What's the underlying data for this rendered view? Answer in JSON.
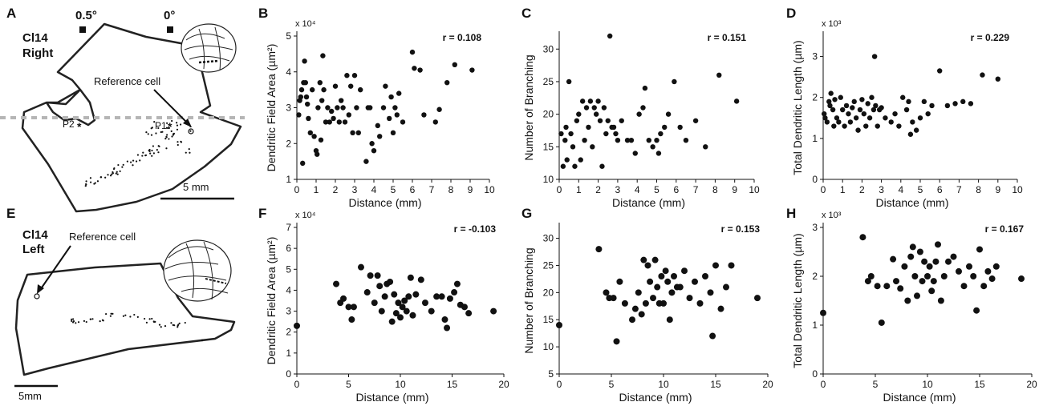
{
  "chart_data": [
    {
      "id": "B",
      "type": "scatter",
      "panel_label": "B",
      "ylabel": "Dendritic Field Area (µm²)",
      "xlabel": "Distance (mm)",
      "multiplier": "x 10⁴",
      "r_label": "r = 0.108",
      "xlim": [
        0,
        10
      ],
      "ylim": [
        1,
        5
      ],
      "xticks": [
        0,
        1,
        2,
        3,
        4,
        5,
        6,
        7,
        8,
        9,
        10
      ],
      "yticks": [
        1,
        2,
        3,
        4,
        5
      ],
      "x": [
        0.1,
        0.15,
        0.2,
        0.25,
        0.3,
        0.35,
        0.4,
        0.45,
        0.5,
        0.55,
        0.6,
        0.7,
        0.8,
        0.9,
        1.0,
        1.05,
        1.1,
        1.2,
        1.25,
        1.3,
        1.35,
        1.4,
        1.5,
        1.6,
        1.7,
        1.8,
        1.9,
        2.0,
        2.1,
        2.2,
        2.3,
        2.4,
        2.5,
        2.6,
        2.7,
        2.8,
        2.9,
        3.0,
        3.1,
        3.2,
        3.3,
        3.6,
        3.7,
        3.8,
        3.9,
        4.0,
        4.2,
        4.3,
        4.5,
        4.6,
        4.8,
        4.9,
        5.0,
        5.1,
        5.2,
        5.3,
        5.5,
        6.0,
        6.1,
        6.4,
        6.6,
        7.2,
        7.4,
        7.8,
        8.2,
        9.1
      ],
      "y": [
        2.8,
        3.2,
        3.3,
        3.5,
        1.45,
        3.7,
        4.3,
        3.7,
        3.3,
        3.1,
        2.7,
        2.3,
        3.5,
        2.2,
        1.8,
        1.7,
        3.0,
        3.7,
        2.1,
        3.2,
        4.45,
        3.5,
        2.6,
        3.0,
        2.6,
        2.9,
        2.7,
        3.6,
        3.0,
        2.6,
        3.2,
        3.0,
        2.6,
        3.9,
        2.8,
        3.6,
        2.3,
        3.9,
        3.0,
        2.3,
        3.5,
        1.5,
        3.0,
        3.0,
        2.0,
        1.8,
        2.5,
        2.2,
        3.0,
        3.6,
        2.7,
        3.3,
        2.3,
        3.0,
        2.8,
        3.4,
        2.6,
        4.55,
        4.1,
        4.05,
        2.8,
        2.6,
        2.95,
        3.7,
        4.2,
        4.05
      ]
    },
    {
      "id": "C",
      "type": "scatter",
      "panel_label": "C",
      "ylabel": "Number of Branching",
      "xlabel": "Distance (mm)",
      "multiplier": "",
      "r_label": "r = 0.151",
      "xlim": [
        0,
        10
      ],
      "ylim": [
        10,
        32
      ],
      "xticks": [
        0,
        1,
        2,
        3,
        4,
        5,
        6,
        7,
        8,
        9,
        10
      ],
      "yticks": [
        10,
        15,
        20,
        25,
        30
      ],
      "x": [
        0.1,
        0.2,
        0.3,
        0.35,
        0.4,
        0.5,
        0.6,
        0.7,
        0.8,
        0.9,
        1.0,
        1.1,
        1.2,
        1.3,
        1.4,
        1.5,
        1.6,
        1.7,
        1.8,
        1.9,
        2.0,
        2.1,
        2.2,
        2.3,
        2.4,
        2.5,
        2.6,
        2.7,
        2.8,
        2.9,
        3.0,
        3.2,
        3.5,
        3.7,
        3.9,
        4.1,
        4.3,
        4.4,
        4.6,
        4.8,
        5.0,
        5.1,
        5.2,
        5.4,
        5.6,
        5.9,
        6.2,
        6.5,
        7.0,
        7.5,
        8.2,
        9.1
      ],
      "y": [
        17,
        12,
        16,
        18,
        13,
        25,
        17,
        15,
        12,
        19,
        20,
        13,
        22,
        16,
        21,
        18,
        22,
        15,
        21,
        20,
        22,
        19,
        12,
        21,
        17,
        19,
        32,
        18,
        18,
        17,
        16,
        19,
        16,
        16,
        14,
        20,
        21,
        24,
        16,
        15,
        16,
        14,
        17,
        18,
        20,
        25,
        18,
        16,
        19,
        15,
        26,
        22
      ]
    },
    {
      "id": "D",
      "type": "scatter",
      "panel_label": "D",
      "ylabel": "Total Dendritic Length (µm)",
      "xlabel": "Distance (mm)",
      "multiplier": "x 10³",
      "r_label": "r = 0.229",
      "xlim": [
        0,
        10
      ],
      "ylim": [
        0,
        3.5
      ],
      "xticks": [
        0,
        1,
        2,
        3,
        4,
        5,
        6,
        7,
        8,
        9,
        10
      ],
      "yticks": [
        0,
        1,
        2,
        3
      ],
      "x": [
        0.05,
        0.1,
        0.2,
        0.3,
        0.35,
        0.4,
        0.5,
        0.55,
        0.6,
        0.7,
        0.8,
        0.9,
        1.0,
        1.1,
        1.2,
        1.3,
        1.4,
        1.5,
        1.6,
        1.7,
        1.8,
        1.9,
        2.0,
        2.1,
        2.2,
        2.3,
        2.4,
        2.5,
        2.6,
        2.65,
        2.7,
        2.8,
        2.9,
        3.0,
        3.2,
        3.5,
        3.7,
        3.9,
        4.1,
        4.3,
        4.4,
        4.5,
        4.6,
        4.8,
        5.0,
        5.2,
        5.4,
        5.6,
        6.0,
        6.4,
        6.8,
        7.2,
        7.6,
        8.2,
        9.0
      ],
      "y": [
        1.6,
        1.5,
        1.4,
        1.9,
        1.8,
        2.1,
        1.7,
        1.3,
        1.95,
        1.5,
        1.4,
        2.0,
        1.7,
        1.3,
        1.8,
        1.6,
        1.4,
        1.75,
        1.9,
        1.5,
        1.2,
        1.7,
        1.95,
        1.6,
        1.3,
        1.85,
        1.5,
        2.0,
        1.7,
        3.0,
        1.8,
        1.3,
        1.7,
        1.75,
        1.5,
        1.4,
        1.6,
        1.3,
        2.0,
        1.7,
        1.9,
        1.1,
        1.4,
        1.2,
        1.5,
        1.9,
        1.6,
        1.8,
        2.65,
        1.8,
        1.85,
        1.9,
        1.85,
        2.55,
        2.45
      ]
    },
    {
      "id": "F",
      "type": "scatter",
      "panel_label": "F",
      "ylabel": "Dendritic Field Area (µm²)",
      "xlabel": "Distance (mm)",
      "multiplier": "x 10⁴",
      "r_label": "r = -0.103",
      "xlim": [
        0,
        20
      ],
      "ylim": [
        0,
        7
      ],
      "xticks": [
        0,
        5,
        10,
        15,
        20
      ],
      "yticks": [
        0,
        1,
        2,
        3,
        4,
        5,
        6,
        7
      ],
      "x": [
        0.0,
        3.8,
        4.2,
        4.5,
        5.0,
        5.3,
        5.5,
        6.2,
        6.8,
        7.1,
        7.5,
        7.8,
        8.0,
        8.2,
        8.5,
        8.7,
        9.0,
        9.2,
        9.4,
        9.6,
        9.8,
        10.0,
        10.2,
        10.4,
        10.6,
        10.8,
        11.0,
        11.2,
        11.5,
        12.0,
        12.4,
        13.0,
        13.5,
        14.0,
        14.3,
        14.5,
        14.8,
        15.2,
        15.5,
        15.8,
        16.2,
        16.6,
        19.0
      ],
      "y": [
        2.3,
        4.3,
        3.4,
        3.6,
        3.2,
        2.6,
        3.2,
        5.1,
        3.9,
        4.7,
        3.4,
        4.7,
        4.2,
        3.0,
        3.7,
        4.3,
        4.4,
        2.5,
        3.8,
        2.9,
        3.4,
        2.7,
        3.2,
        3.5,
        3.0,
        3.7,
        4.6,
        2.8,
        3.8,
        4.5,
        3.4,
        3.0,
        3.7,
        3.7,
        2.6,
        2.2,
        3.6,
        3.9,
        4.3,
        3.3,
        3.2,
        2.9,
        3.0
      ]
    },
    {
      "id": "G",
      "type": "scatter",
      "panel_label": "G",
      "ylabel": "Number of Branching",
      "xlabel": "Distance (mm)",
      "multiplier": "",
      "r_label": "r = 0.153",
      "xlim": [
        0,
        20
      ],
      "ylim": [
        5,
        32
      ],
      "xticks": [
        0,
        5,
        10,
        15,
        20
      ],
      "yticks": [
        5,
        10,
        15,
        20,
        25,
        30
      ],
      "x": [
        0.0,
        3.8,
        4.5,
        4.8,
        5.2,
        5.5,
        5.8,
        6.3,
        7.0,
        7.3,
        7.6,
        7.9,
        8.1,
        8.3,
        8.5,
        8.7,
        9.0,
        9.2,
        9.4,
        9.6,
        9.8,
        10.0,
        10.2,
        10.4,
        10.6,
        10.8,
        11.0,
        11.3,
        11.6,
        12.0,
        12.5,
        13.0,
        13.5,
        14.0,
        14.5,
        14.7,
        15.0,
        15.5,
        16.0,
        16.5,
        19.0
      ],
      "y": [
        14,
        28,
        20,
        19,
        19,
        11,
        22,
        18,
        15,
        17,
        20,
        16,
        26,
        18,
        25,
        22,
        19,
        26,
        21,
        18,
        23,
        18,
        24,
        22,
        15,
        20,
        23,
        21,
        21,
        24,
        19,
        22,
        18,
        23,
        20,
        12,
        25,
        17,
        21,
        25,
        19
      ]
    },
    {
      "id": "H",
      "type": "scatter",
      "panel_label": "H",
      "ylabel": "Total Dendritic Length (µm)",
      "xlabel": "Distance (mm)",
      "multiplier": "x 10³",
      "r_label": "r = 0.167",
      "xlim": [
        0,
        20
      ],
      "ylim": [
        0,
        3
      ],
      "xticks": [
        0,
        5,
        10,
        15,
        20
      ],
      "yticks": [
        0,
        1,
        2,
        3
      ],
      "x": [
        0.0,
        3.8,
        4.3,
        4.6,
        5.2,
        5.6,
        6.1,
        6.7,
        7.0,
        7.4,
        7.8,
        8.1,
        8.4,
        8.6,
        8.8,
        9.0,
        9.3,
        9.5,
        9.7,
        10.0,
        10.2,
        10.4,
        10.6,
        10.8,
        11.0,
        11.3,
        11.6,
        12.0,
        12.5,
        13.0,
        13.5,
        14.0,
        14.4,
        14.7,
        15.0,
        15.4,
        15.8,
        16.2,
        16.6,
        19.0
      ],
      "y": [
        1.25,
        2.8,
        1.9,
        2.0,
        1.8,
        1.05,
        1.8,
        2.35,
        1.9,
        1.75,
        2.2,
        1.5,
        2.4,
        2.6,
        2.0,
        1.6,
        2.5,
        1.9,
        2.3,
        2.0,
        2.2,
        1.7,
        1.9,
        2.3,
        2.65,
        1.5,
        2.0,
        2.3,
        2.4,
        2.1,
        1.8,
        2.2,
        2.0,
        1.3,
        2.55,
        1.8,
        2.1,
        1.95,
        2.2,
        1.95
      ]
    }
  ],
  "map_a": {
    "panel_label": "A",
    "title_line1": "Cl14",
    "title_line2": "Right",
    "ecc_label_1": "0.5°",
    "ecc_label_2": "0°",
    "reference_label": "Reference cell",
    "p1_label": "P1",
    "p2_label": "P2",
    "scale_label": "5 mm"
  },
  "map_e": {
    "panel_label": "E",
    "title_line1": "Cl14",
    "title_line2": "Left",
    "reference_label": "Reference cell",
    "scale_label": "5mm"
  },
  "colors": {
    "ink": "#111111",
    "dashed_line": "#b5b5b5",
    "background": "#ffffff"
  }
}
